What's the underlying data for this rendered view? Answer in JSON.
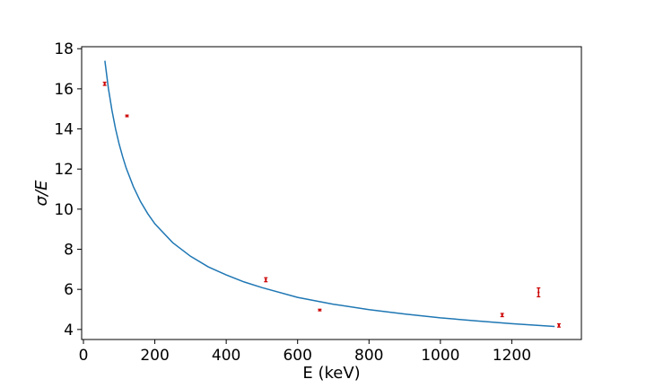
{
  "chart_data": {
    "type": "scatter",
    "xlabel": "E (keV)",
    "ylabel": "σ/E",
    "xlim": [
      -5,
      1395
    ],
    "ylim": [
      3.5,
      18.1
    ],
    "xticks": [
      0,
      200,
      400,
      600,
      800,
      1000,
      1200
    ],
    "yticks": [
      4,
      6,
      8,
      10,
      12,
      14,
      16,
      18
    ],
    "grid": false,
    "legend": "none",
    "series": [
      {
        "kind": "errorbar-points",
        "color": "#cc0000",
        "points": [
          {
            "x": 59.5,
            "y": 16.25,
            "err": 0.08
          },
          {
            "x": 122,
            "y": 14.65,
            "err": 0.04
          },
          {
            "x": 511,
            "y": 6.48,
            "err": 0.1
          },
          {
            "x": 662,
            "y": 4.97,
            "err": 0.04
          },
          {
            "x": 1173,
            "y": 4.72,
            "err": 0.08
          },
          {
            "x": 1275,
            "y": 5.85,
            "err": 0.22
          },
          {
            "x": 1332,
            "y": 4.2,
            "err": 0.08
          }
        ]
      },
      {
        "kind": "fit-curve",
        "color": "#1f77b4",
        "x": [
          60,
          70,
          80,
          90,
          100,
          110,
          120,
          140,
          160,
          180,
          200,
          250,
          300,
          350,
          400,
          450,
          500,
          600,
          700,
          800,
          900,
          1000,
          1100,
          1200,
          1320
        ],
        "y": [
          17.4,
          16.02,
          14.92,
          14.0,
          13.24,
          12.6,
          12.04,
          11.12,
          10.38,
          9.78,
          9.27,
          8.33,
          7.65,
          7.12,
          6.72,
          6.37,
          6.09,
          5.6,
          5.26,
          4.99,
          4.77,
          4.58,
          4.43,
          4.29,
          4.15
        ]
      }
    ]
  }
}
